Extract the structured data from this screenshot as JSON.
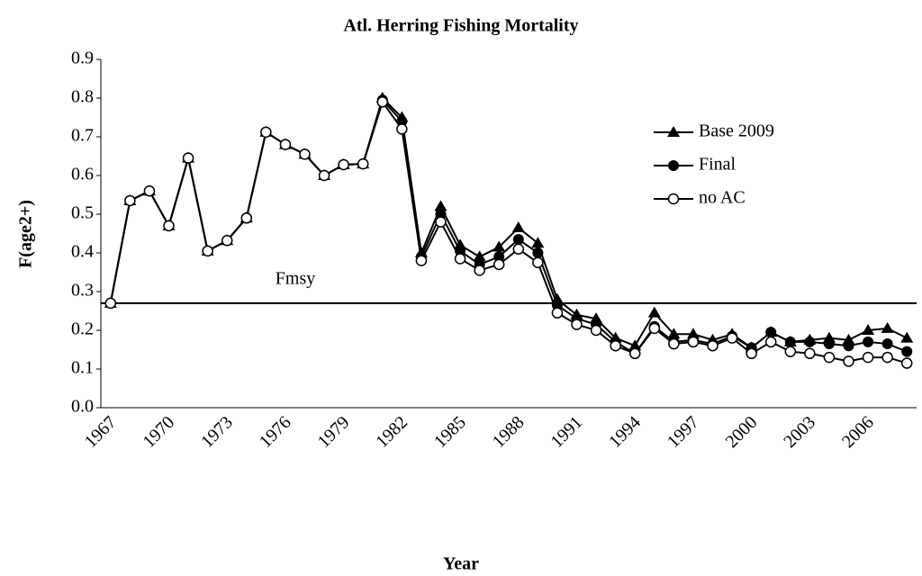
{
  "chart_data": {
    "type": "line",
    "title": "Atl. Herring Fishing Mortality",
    "x_label": "Year",
    "y_label": "F(age2+)",
    "categories": [
      "1967",
      null,
      null,
      "1970",
      null,
      null,
      "1973",
      null,
      null,
      "1976",
      null,
      null,
      "1979",
      null,
      null,
      "1982",
      null,
      null,
      "1985",
      null,
      null,
      "1988",
      null,
      null,
      "1991",
      null,
      null,
      "1994",
      null,
      null,
      "1997",
      null,
      null,
      "2000",
      null,
      null,
      "2003",
      null,
      null,
      "2006",
      null,
      null
    ],
    "series": [
      {
        "name": "Base 2009",
        "color": "#000000",
        "marker": "triangle",
        "values": [
          0.27,
          0.535,
          0.56,
          0.47,
          0.645,
          0.405,
          0.432,
          0.49,
          0.712,
          0.68,
          0.655,
          0.6,
          0.628,
          0.63,
          0.8,
          0.75,
          0.4,
          0.52,
          0.42,
          0.39,
          0.415,
          0.465,
          0.425,
          0.28,
          0.24,
          0.23,
          0.18,
          0.16,
          0.245,
          0.19,
          0.19,
          0.175,
          0.19,
          0.155,
          0.195,
          0.17,
          0.175,
          0.18,
          0.175,
          0.2,
          0.205,
          0.18
        ]
      },
      {
        "name": "Final",
        "color": "#000000",
        "marker": "circle",
        "values": [
          0.27,
          0.535,
          0.56,
          0.47,
          0.645,
          0.405,
          0.432,
          0.49,
          0.712,
          0.68,
          0.655,
          0.6,
          0.628,
          0.63,
          0.795,
          0.74,
          0.39,
          0.5,
          0.405,
          0.37,
          0.39,
          0.435,
          0.4,
          0.265,
          0.23,
          0.215,
          0.17,
          0.14,
          0.21,
          0.17,
          0.175,
          0.165,
          0.185,
          0.155,
          0.195,
          0.17,
          0.17,
          0.165,
          0.16,
          0.17,
          0.165,
          0.145
        ]
      },
      {
        "name": "no AC",
        "color": "#000000",
        "marker": "open-circle",
        "values": [
          0.27,
          0.535,
          0.56,
          0.47,
          0.645,
          0.405,
          0.432,
          0.49,
          0.712,
          0.68,
          0.655,
          0.6,
          0.628,
          0.63,
          0.79,
          0.72,
          0.38,
          0.48,
          0.385,
          0.355,
          0.37,
          0.41,
          0.375,
          0.245,
          0.215,
          0.2,
          0.16,
          0.14,
          0.205,
          0.165,
          0.17,
          0.16,
          0.18,
          0.14,
          0.17,
          0.145,
          0.14,
          0.13,
          0.12,
          0.13,
          0.13,
          0.115
        ]
      }
    ],
    "reference_lines": [
      {
        "label": "Fmsy",
        "value": 0.27
      }
    ],
    "ylim": [
      0,
      0.9
    ],
    "yticks": [
      {
        "value": 0,
        "label": "0.0"
      },
      0.1,
      0.2,
      0.3,
      0.4,
      0.5,
      0.6,
      0.7,
      0.8,
      0.9
    ],
    "grid": false,
    "legend": "top-right"
  }
}
